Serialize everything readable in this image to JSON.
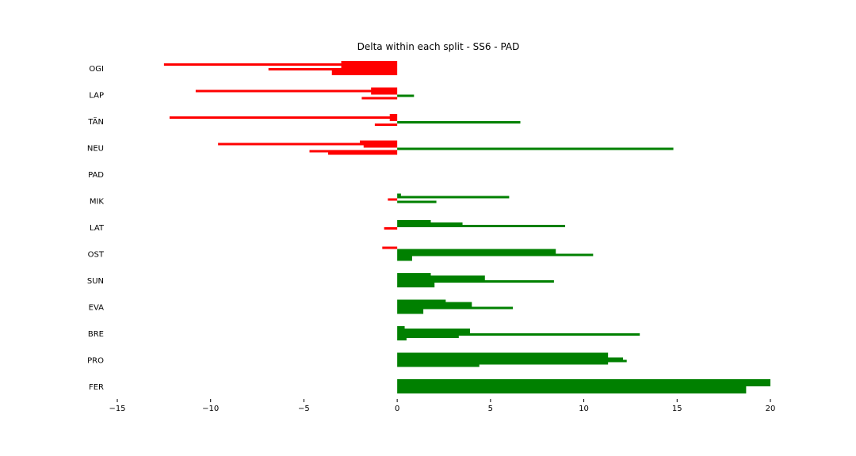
{
  "chart_data": {
    "type": "bar",
    "orientation": "horizontal",
    "title": "Delta within each split - SS6 - PAD",
    "xlabel": "",
    "ylabel": "",
    "xlim": [
      -15,
      20
    ],
    "xticks": [
      -15,
      -10,
      -5,
      0,
      5,
      10,
      15,
      20
    ],
    "xtick_labels": [
      "−15",
      "−10",
      "−5",
      "0",
      "5",
      "10",
      "15",
      "20"
    ],
    "grid": false,
    "legend": "none",
    "colors": {
      "positive": "#008000",
      "negative": "#ff0000"
    },
    "categories": [
      "FER",
      "PRO",
      "BRE",
      "EVA",
      "SUN",
      "OST",
      "LAT",
      "MIK",
      "PAD",
      "NEU",
      "TÄN",
      "LAP",
      "OGI"
    ],
    "series": [
      {
        "values": [
          20.0,
          11.3,
          0.4,
          2.6,
          1.8,
          -0.8,
          1.8,
          0.2,
          0,
          -2.0,
          -0.4,
          -1.4,
          -3.0
        ]
      },
      {
        "values": [
          20.0,
          11.3,
          3.9,
          4.0,
          4.7,
          8.5,
          3.5,
          6.0,
          0,
          -9.6,
          -12.2,
          -10.8,
          -12.5
        ]
      },
      {
        "values": [
          20.0,
          12.1,
          3.9,
          4.0,
          4.7,
          8.5,
          9.0,
          -0.5,
          0,
          -1.8,
          -0.4,
          -1.4,
          -3.0
        ]
      },
      {
        "values": [
          18.7,
          12.3,
          13.0,
          6.2,
          8.4,
          10.5,
          -0.7,
          2.1,
          0,
          14.8,
          6.6,
          0.9,
          -6.9
        ]
      },
      {
        "values": [
          18.7,
          11.3,
          3.3,
          1.4,
          2.0,
          0.8,
          0.0,
          0.0,
          0,
          -4.7,
          -1.2,
          -1.9,
          -3.5
        ]
      },
      {
        "values": [
          18.7,
          4.4,
          0.5,
          1.4,
          2.0,
          0.8,
          0.0,
          0.0,
          0,
          -3.7,
          0.0,
          0.0,
          -3.5
        ]
      }
    ]
  }
}
